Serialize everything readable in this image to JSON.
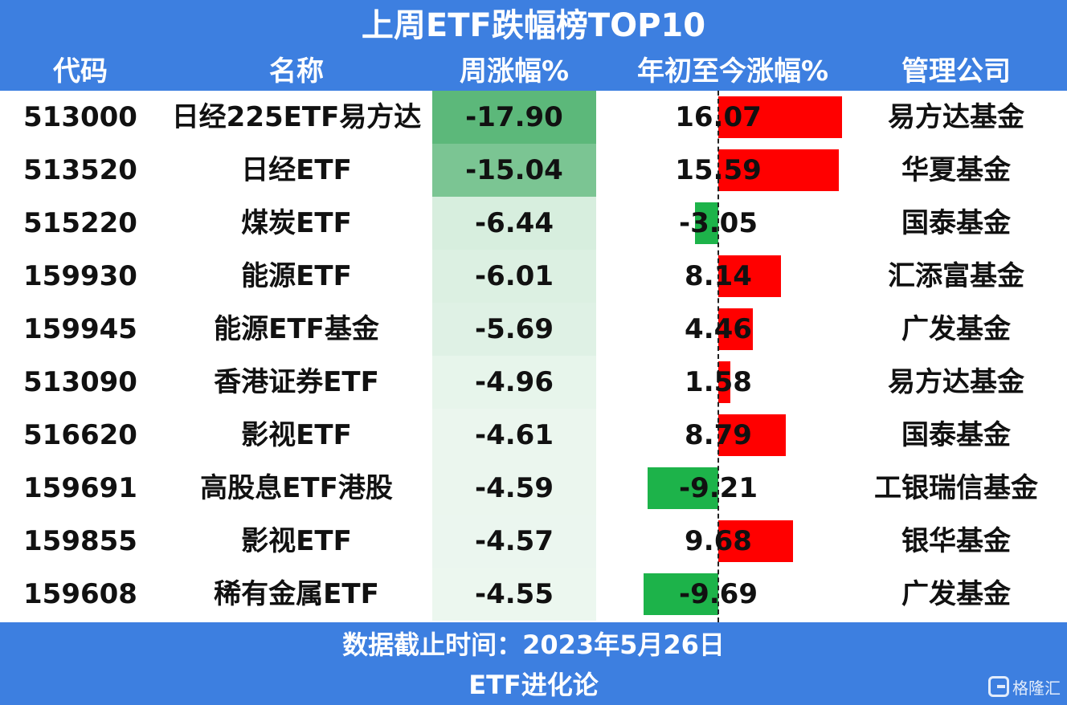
{
  "title": "上周ETF跌幅榜TOP10",
  "columns": [
    "代码",
    "名称",
    "周涨幅%",
    "年初至今涨幅%",
    "管理公司"
  ],
  "colors": {
    "header_bg": "#3d7fe0",
    "positive_bar": "#ff0000",
    "negative_bar": "#1db34a",
    "week_shade": "#5cb87a"
  },
  "rows": [
    {
      "code": "513000",
      "name": "日经225ETF易方达",
      "week": -17.9,
      "week_text": "-17.90",
      "ytd": 16.07,
      "ytd_text": "16.07",
      "company": "易方达基金"
    },
    {
      "code": "513520",
      "name": "日经ETF",
      "week": -15.04,
      "week_text": "-15.04",
      "ytd": 15.59,
      "ytd_text": "15.59",
      "company": "华夏基金"
    },
    {
      "code": "515220",
      "name": "煤炭ETF",
      "week": -6.44,
      "week_text": "-6.44",
      "ytd": -3.05,
      "ytd_text": "-3.05",
      "company": "国泰基金"
    },
    {
      "code": "159930",
      "name": "能源ETF",
      "week": -6.01,
      "week_text": "-6.01",
      "ytd": 8.14,
      "ytd_text": "8.14",
      "company": "汇添富基金"
    },
    {
      "code": "159945",
      "name": "能源ETF基金",
      "week": -5.69,
      "week_text": "-5.69",
      "ytd": 4.46,
      "ytd_text": "4.46",
      "company": "广发基金"
    },
    {
      "code": "513090",
      "name": "香港证券ETF",
      "week": -4.96,
      "week_text": "-4.96",
      "ytd": 1.58,
      "ytd_text": "1.58",
      "company": "易方达基金"
    },
    {
      "code": "516620",
      "name": "影视ETF",
      "week": -4.61,
      "week_text": "-4.61",
      "ytd": 8.79,
      "ytd_text": "8.79",
      "company": "国泰基金"
    },
    {
      "code": "159691",
      "name": "高股息ETF港股",
      "week": -4.59,
      "week_text": "-4.59",
      "ytd": -9.21,
      "ytd_text": "-9.21",
      "company": "工银瑞信基金"
    },
    {
      "code": "159855",
      "name": "影视ETF",
      "week": -4.57,
      "week_text": "-4.57",
      "ytd": 9.68,
      "ytd_text": "9.68",
      "company": "银华基金"
    },
    {
      "code": "159608",
      "name": "稀有金属ETF",
      "week": -4.55,
      "week_text": "-4.55",
      "ytd": -9.69,
      "ytd_text": "-9.69",
      "company": "广发基金"
    }
  ],
  "chart_data": {
    "type": "table",
    "title": "上周ETF跌幅榜TOP10",
    "columns": [
      "代码",
      "名称",
      "周涨幅%",
      "年初至今涨幅%",
      "管理公司"
    ],
    "categories": [
      "513000",
      "513520",
      "515220",
      "159930",
      "159945",
      "513090",
      "516620",
      "159691",
      "159855",
      "159608"
    ],
    "series": [
      {
        "name": "周涨幅%",
        "values": [
          -17.9,
          -15.04,
          -6.44,
          -6.01,
          -5.69,
          -4.96,
          -4.61,
          -4.59,
          -4.57,
          -4.55
        ]
      },
      {
        "name": "年初至今涨幅%",
        "values": [
          16.07,
          15.59,
          -3.05,
          8.14,
          4.46,
          1.58,
          8.79,
          -9.21,
          9.68,
          -9.69
        ]
      }
    ]
  },
  "footer": {
    "date": "数据截止时间：2023年5月26日",
    "source": "ETF进化论"
  },
  "watermark": {
    "icon": "gelonghui-logo-icon",
    "text": "格隆汇"
  }
}
